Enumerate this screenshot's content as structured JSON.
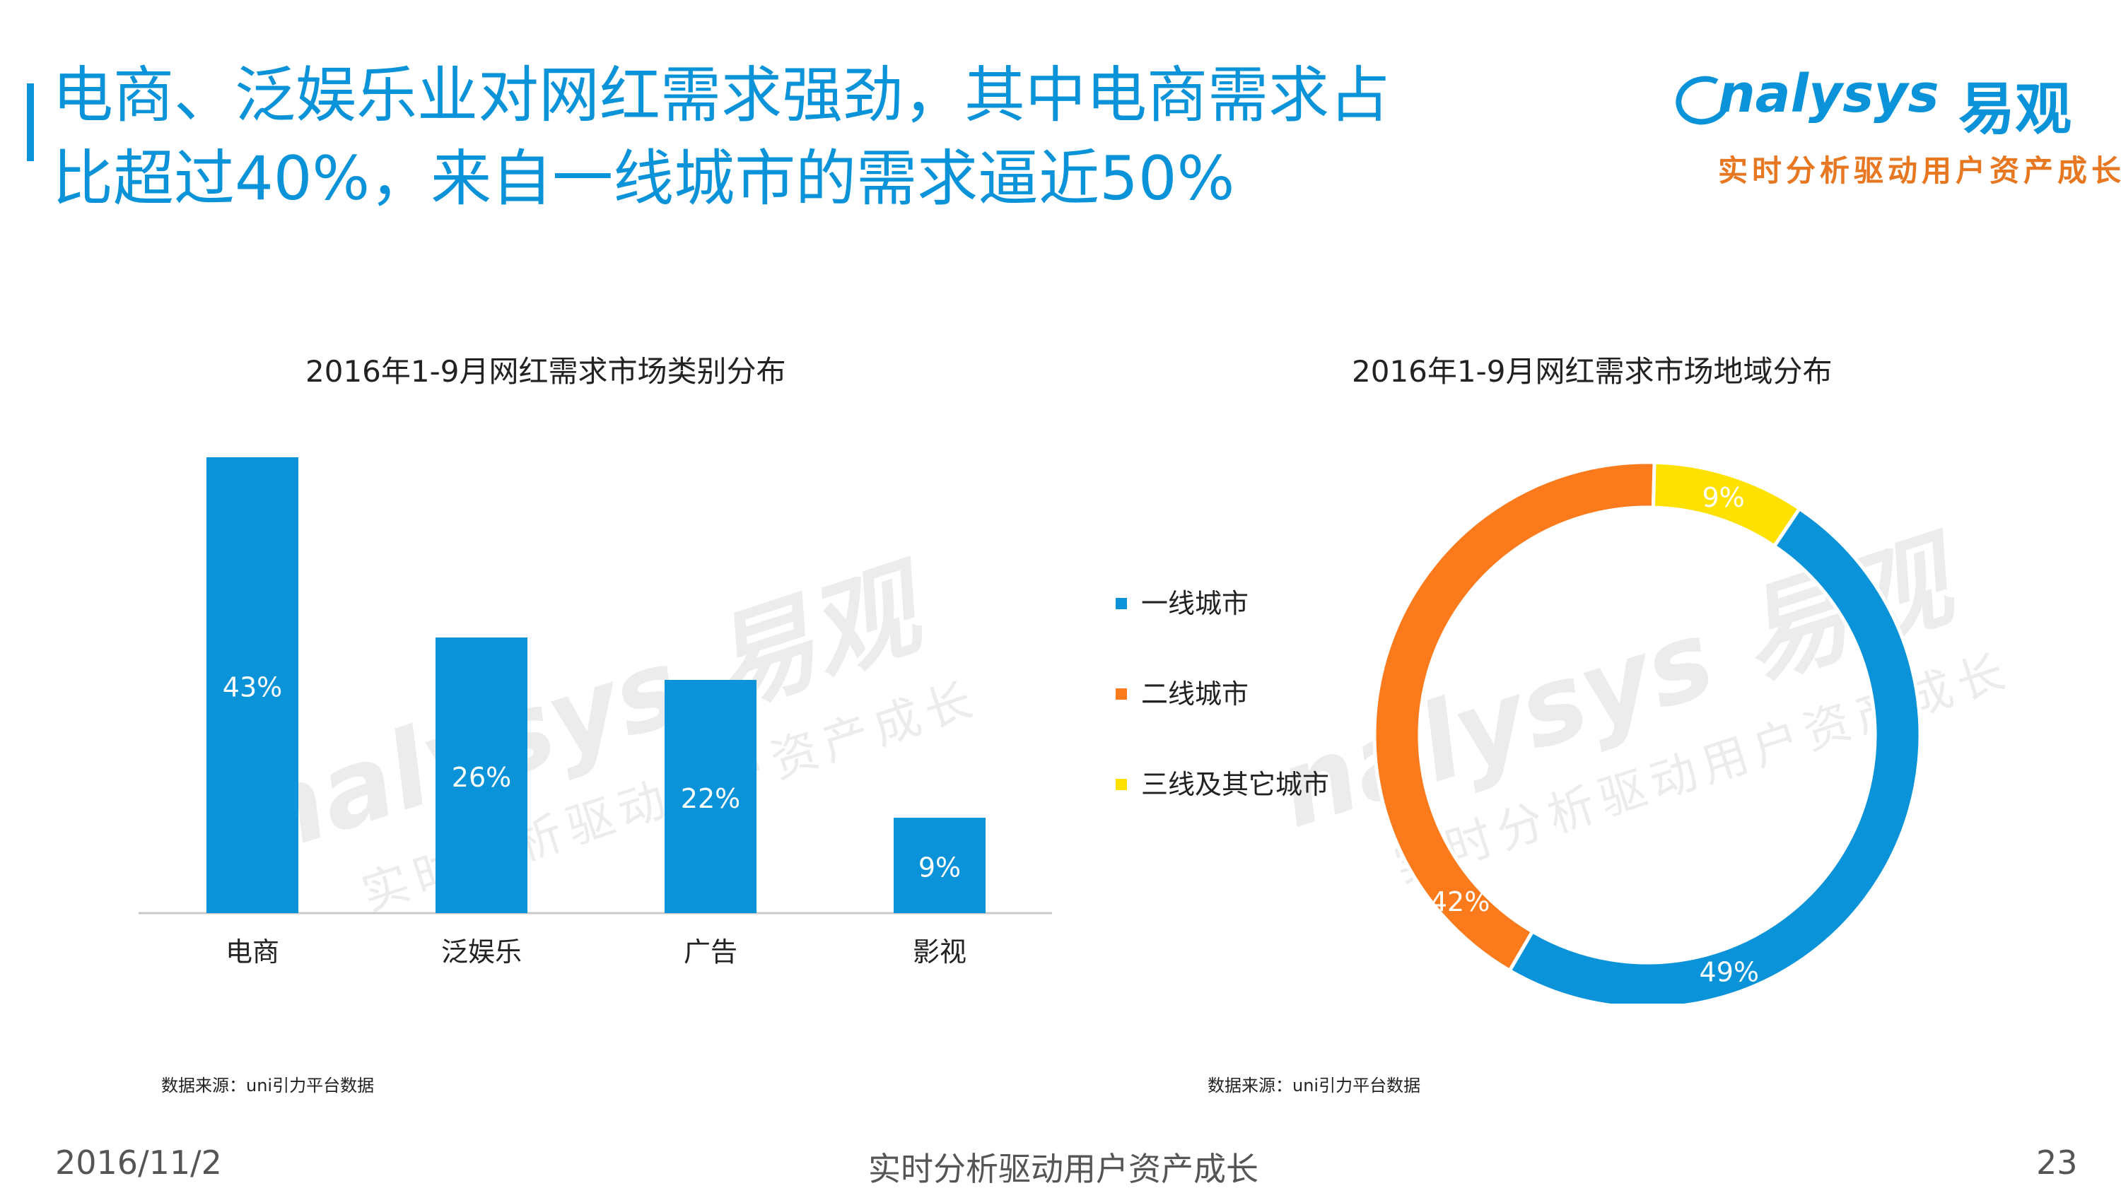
{
  "header": {
    "title_line1": "电商、泛娱乐业对网红需求强劲，其中电商需求占",
    "title_line2": "比超过40%，来自一线城市的需求逼近50%"
  },
  "logo": {
    "wordmark": "nalysys",
    "brand_cn": "易观",
    "tagline": "实时分析驱动用户资产成长"
  },
  "watermark": {
    "main": "nalysys 易观",
    "sub": "实时分析驱动用户资产成长"
  },
  "colors": {
    "accent": "#0a93d8",
    "bar": "#0a93d8",
    "tier1": "#0a93d8",
    "tier2": "#fb7a1c",
    "tier3": "#ffe100"
  },
  "chart_data": [
    {
      "type": "bar",
      "title": "2016年1-9月网红需求市场类别分布",
      "categories": [
        "电商",
        "泛娱乐",
        "广告",
        "影视"
      ],
      "values": [
        43,
        26,
        22,
        9
      ],
      "data_labels": [
        "43%",
        "26%",
        "22%",
        "9%"
      ],
      "ylim": [
        0,
        43
      ],
      "grid": false,
      "source": "数据来源：uni引力平台数据"
    },
    {
      "type": "pie",
      "variant": "donut",
      "title": "2016年1-9月网红需求市场地域分布",
      "categories": [
        "一线城市",
        "二线城市",
        "三线及其它城市"
      ],
      "values": [
        49,
        42,
        9
      ],
      "data_labels": [
        "49%",
        "42%",
        "9%"
      ],
      "legend": "left",
      "source": "数据来源：uni引力平台数据"
    }
  ],
  "footer": {
    "date": "2016/11/2",
    "slogan": "实时分析驱动用户资产成长",
    "page": "23"
  }
}
